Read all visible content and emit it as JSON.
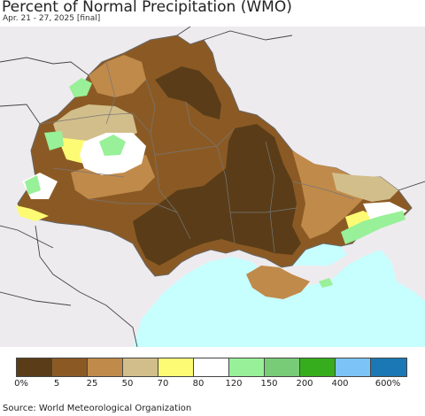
{
  "title": "Percent of Normal Precipitation (WMO)",
  "subtitle": "Apr. 21 - 27, 2025 [final]",
  "source": "Source: World Meteorological Organization",
  "legend": {
    "colors": [
      "#5a3d18",
      "#8b5a24",
      "#c08a4a",
      "#d2be8a",
      "#fdfb74",
      "#ffffff",
      "#98f098",
      "#78cc78",
      "#36ad1c",
      "#7cc4f8",
      "#1c78b4"
    ],
    "labels": [
      "0%",
      "5",
      "25",
      "50",
      "70",
      "80",
      "120",
      "150",
      "200",
      "400",
      "600%"
    ]
  },
  "map": {
    "colors": {
      "background": "#eeebef",
      "sea": "#c7fefe",
      "darkest": "#5a3d18",
      "dark": "#8b5a24",
      "mid": "#c08a4a",
      "tan": "#d2be8a",
      "yellow": "#fdfb74",
      "white": "#ffffff",
      "lightgreen": "#98f098",
      "green": "#78cc78",
      "border": "#777777"
    }
  }
}
